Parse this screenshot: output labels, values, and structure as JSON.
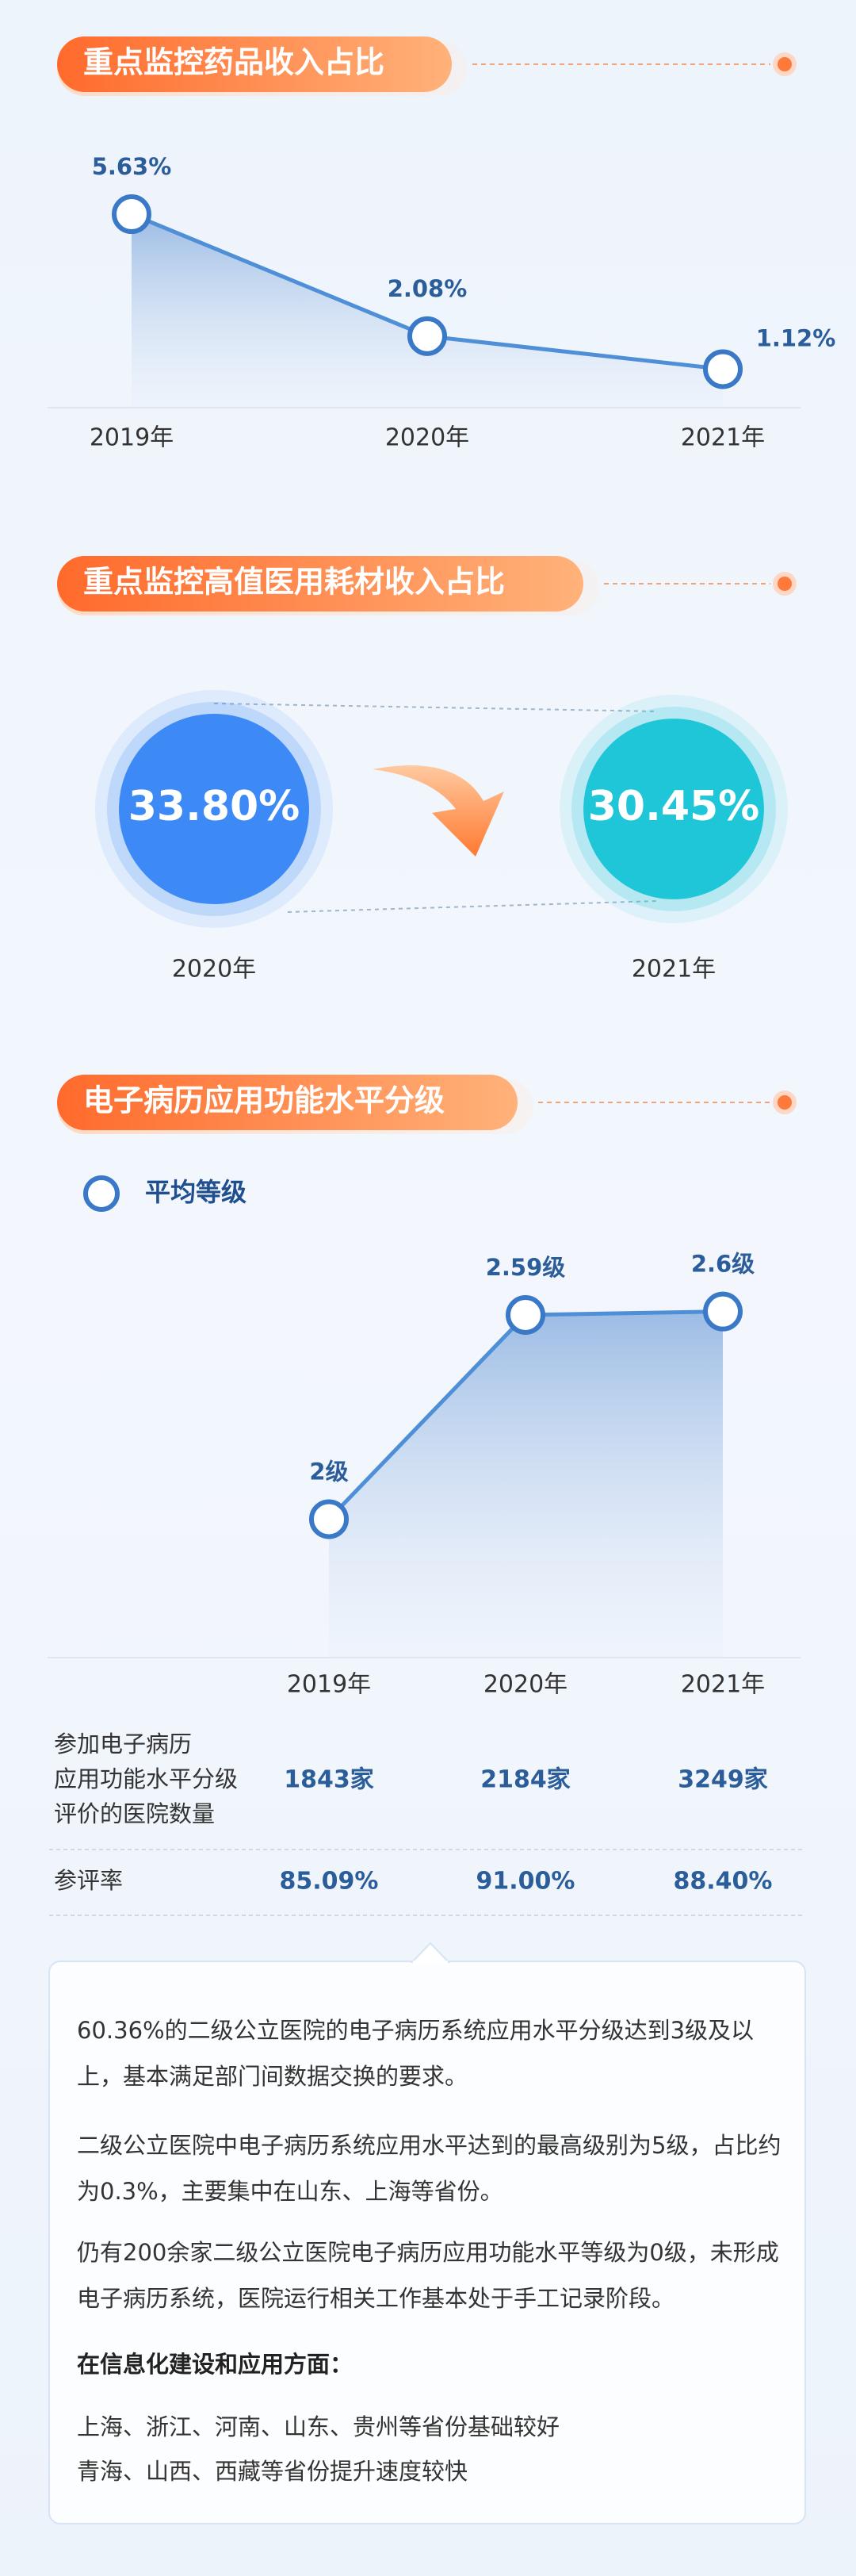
{
  "chart_data": [
    {
      "type": "line",
      "title": "重点监控药品收入占比",
      "categories": [
        "2019年",
        "2020年",
        "2021年"
      ],
      "values": [
        5.63,
        2.08,
        1.12
      ],
      "value_labels": [
        "5.63%",
        "2.08%",
        "1.12%"
      ],
      "color": "#4f8fd8",
      "ylim": [
        0,
        6
      ]
    },
    {
      "type": "circles",
      "title": "重点监控高值医用耗材收入占比",
      "categories": [
        "2020年",
        "2021年"
      ],
      "values": [
        33.8,
        30.45
      ],
      "value_labels": [
        "33.80%",
        "30.45%"
      ],
      "colors": [
        "#3d8af7",
        "#1ec6d8"
      ]
    },
    {
      "type": "line",
      "title": "电子病历应用功能水平分级",
      "categories": [
        "2019年",
        "2020年",
        "2021年"
      ],
      "series": [
        {
          "name": "平均等级",
          "color": "#4f8fd8",
          "values": [
            2,
            2.59,
            2.6
          ],
          "value_labels": [
            "2级",
            "2.59级",
            "2.6级"
          ]
        }
      ],
      "ylim": [
        1.6,
        2.7
      ]
    }
  ],
  "table": {
    "rows": [
      {
        "label": [
          "参加电子病历",
          "应用功能水平分级",
          "评价的医院数量"
        ],
        "cells": [
          "1843家",
          "2184家",
          "3249家"
        ]
      },
      {
        "label": [
          "参评率"
        ],
        "cells": [
          "85.09%",
          "91.00%",
          "88.40%"
        ]
      }
    ]
  },
  "notes": {
    "paragraphs": [
      "60.36%的二级公立医院的电子病历系统应用水平分级达到3级及以上，基本满足部门间数据交换的要求。",
      "二级公立医院中电子病历系统应用水平达到的最高级别为5级，占比约为0.3%，主要集中在山东、上海等省份。",
      "仍有200余家二级公立医院电子病历应用功能水平等级为0级，未形成电子病历系统，医院运行相关工作基本处于手工记录阶段。"
    ],
    "heading": "在信息化建设和应用方面：",
    "items": [
      "上海、浙江、河南、山东、贵州等省份基础较好",
      "青海、山西、西藏等省份提升速度较快"
    ]
  }
}
